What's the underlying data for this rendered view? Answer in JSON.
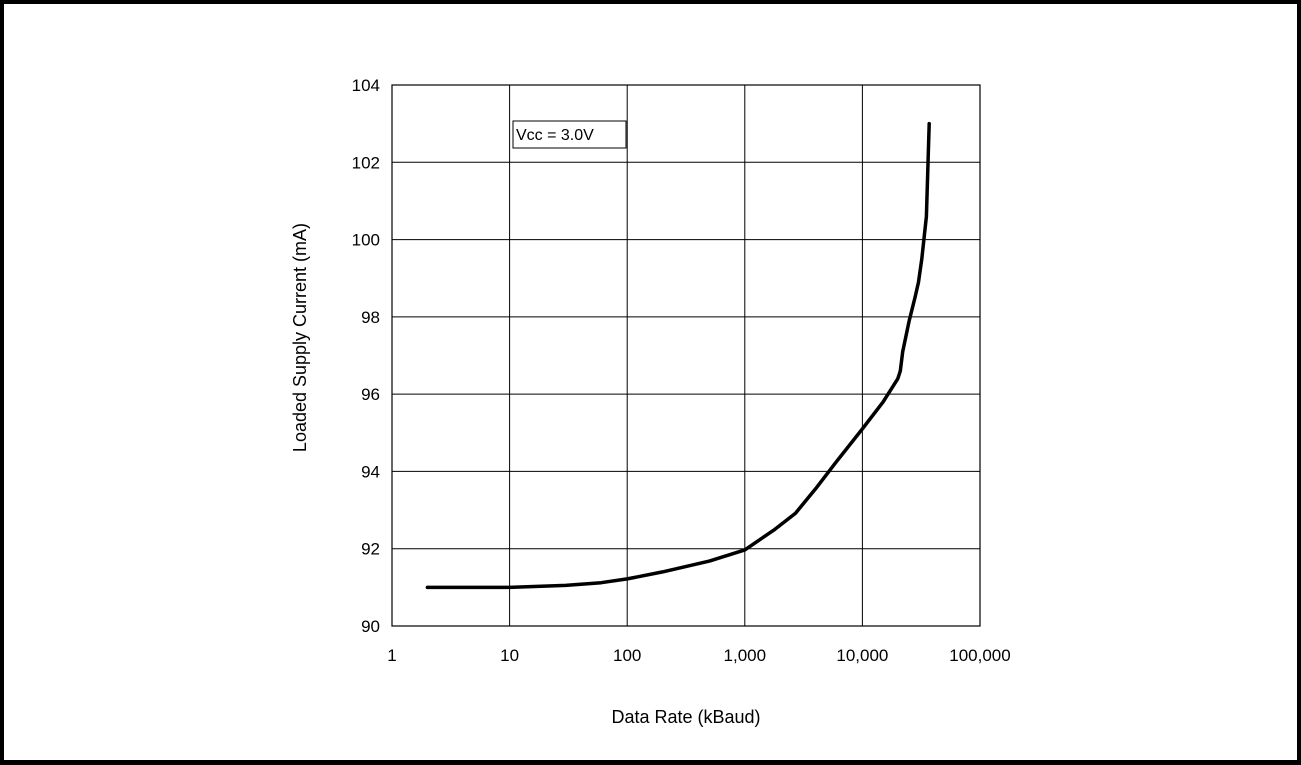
{
  "chart_data": {
    "type": "line",
    "xlabel": "Data Rate (kBaud)",
    "ylabel": "Loaded Supply Current (mA)",
    "x_scale": "log",
    "xlim": [
      1,
      100000
    ],
    "ylim": [
      90,
      104
    ],
    "x_ticks": [
      1,
      10,
      100,
      1000,
      10000,
      100000
    ],
    "x_tick_labels": [
      "1",
      "10",
      "100",
      "1,000",
      "10,000",
      "100,000"
    ],
    "y_ticks": [
      90,
      92,
      94,
      96,
      98,
      100,
      102,
      104
    ],
    "y_tick_labels": [
      "90",
      "92",
      "94",
      "96",
      "98",
      "100",
      "102",
      "104"
    ],
    "grid": true,
    "annotation": "Vcc = 3.0V",
    "line_color": "#000000",
    "series": [
      {
        "x": [
          2,
          10,
          30,
          60,
          100,
          200,
          500,
          1000,
          1800,
          2700,
          4000,
          6000,
          10000,
          15000,
          20000,
          21000,
          22000,
          25000,
          28000,
          30000,
          32000,
          35000,
          36000,
          37000
        ],
        "y": [
          91.0,
          91.0,
          91.05,
          91.12,
          91.22,
          91.4,
          91.68,
          91.97,
          92.5,
          92.92,
          93.55,
          94.25,
          95.1,
          95.8,
          96.4,
          96.6,
          97.1,
          97.9,
          98.5,
          98.9,
          99.5,
          100.6,
          101.8,
          103.0
        ]
      }
    ]
  }
}
